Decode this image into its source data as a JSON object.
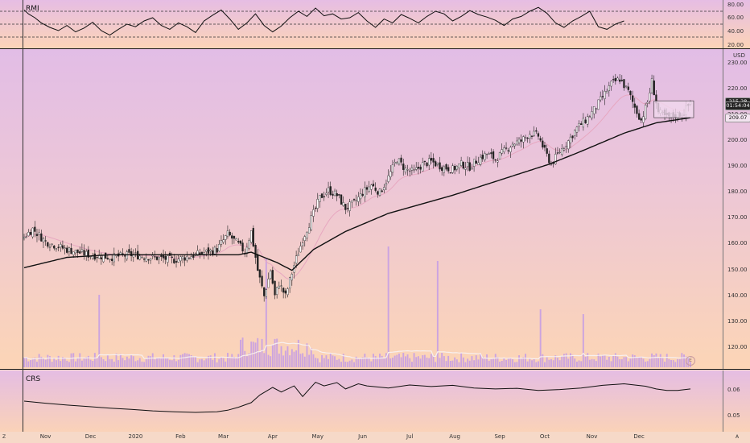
{
  "chart_data": [
    {
      "type": "line",
      "title": "RMI",
      "y_ticks": [
        80,
        60,
        40,
        20
      ],
      "y_tick_labels": [
        "80.00",
        "60.00",
        "40.00",
        "20.00"
      ],
      "dashed_levels": [
        70,
        50,
        30
      ],
      "ylim": [
        15,
        85
      ],
      "series": [
        {
          "x_index": [
            0,
            2,
            5,
            8,
            12,
            16,
            20,
            24,
            28,
            32,
            36,
            40,
            44,
            48,
            52,
            56,
            60,
            64,
            68,
            72,
            76,
            80,
            84,
            88,
            92,
            96,
            100,
            104,
            108,
            112,
            116,
            120,
            124,
            128,
            132,
            136,
            140,
            144,
            148,
            152,
            156,
            160,
            164,
            168,
            172,
            176,
            180,
            184,
            188,
            192,
            196,
            200,
            204,
            208,
            212,
            216,
            220,
            224,
            228,
            232,
            236,
            240,
            244,
            248,
            252,
            256,
            260,
            264,
            268,
            272,
            276,
            280
          ],
          "values": [
            72,
            66,
            60,
            52,
            45,
            40,
            48,
            38,
            44,
            53,
            40,
            33,
            42,
            50,
            46,
            55,
            60,
            48,
            42,
            52,
            46,
            37,
            55,
            64,
            72,
            58,
            42,
            52,
            66,
            48,
            38,
            47,
            60,
            70,
            62,
            75,
            63,
            66,
            58,
            60,
            68,
            55,
            45,
            58,
            52,
            65,
            59,
            52,
            62,
            70,
            66,
            55,
            62,
            71,
            65,
            61,
            56,
            48,
            58,
            62,
            70,
            76,
            67,
            52,
            45,
            55,
            62,
            70,
            46,
            42,
            50,
            55
          ]
        }
      ]
    },
    {
      "type": "candlestick",
      "currency": "USD",
      "y_ticks": [
        230,
        220,
        210,
        200,
        190,
        180,
        170,
        160,
        150,
        140,
        130,
        120
      ],
      "y_tick_labels": [
        "230.00",
        "220.00",
        "210.00",
        "200.00",
        "190.00",
        "180.00",
        "170.00",
        "160.00",
        "150.00",
        "140.00",
        "130.00",
        "120.00"
      ],
      "ylim": [
        115,
        233
      ],
      "last_price": "215.28",
      "countdown_label": "01:54:04",
      "sma_label": "209.07",
      "event_marker": "E",
      "close_anchors": [
        {
          "d": 0,
          "c": 163
        },
        {
          "d": 4,
          "c": 166
        },
        {
          "d": 10,
          "c": 161
        },
        {
          "d": 20,
          "c": 158
        },
        {
          "d": 30,
          "c": 156
        },
        {
          "d": 40,
          "c": 155
        },
        {
          "d": 50,
          "c": 156
        },
        {
          "d": 60,
          "c": 155
        },
        {
          "d": 70,
          "c": 154
        },
        {
          "d": 80,
          "c": 156
        },
        {
          "d": 90,
          "c": 158
        },
        {
          "d": 95,
          "c": 164
        },
        {
          "d": 100,
          "c": 160
        },
        {
          "d": 103,
          "c": 157
        },
        {
          "d": 106,
          "c": 165
        },
        {
          "d": 109,
          "c": 150
        },
        {
          "d": 112,
          "c": 140
        },
        {
          "d": 115,
          "c": 150
        },
        {
          "d": 117,
          "c": 140
        },
        {
          "d": 119,
          "c": 145
        },
        {
          "d": 122,
          "c": 140
        },
        {
          "d": 126,
          "c": 152
        },
        {
          "d": 130,
          "c": 162
        },
        {
          "d": 134,
          "c": 170
        },
        {
          "d": 138,
          "c": 178
        },
        {
          "d": 142,
          "c": 181
        },
        {
          "d": 146,
          "c": 179
        },
        {
          "d": 150,
          "c": 174
        },
        {
          "d": 154,
          "c": 176
        },
        {
          "d": 158,
          "c": 180
        },
        {
          "d": 162,
          "c": 183
        },
        {
          "d": 166,
          "c": 180
        },
        {
          "d": 170,
          "c": 186
        },
        {
          "d": 174,
          "c": 193
        },
        {
          "d": 178,
          "c": 189
        },
        {
          "d": 182,
          "c": 188
        },
        {
          "d": 186,
          "c": 191
        },
        {
          "d": 190,
          "c": 192
        },
        {
          "d": 195,
          "c": 190
        },
        {
          "d": 200,
          "c": 189
        },
        {
          "d": 204,
          "c": 191
        },
        {
          "d": 208,
          "c": 190
        },
        {
          "d": 212,
          "c": 193
        },
        {
          "d": 216,
          "c": 195
        },
        {
          "d": 220,
          "c": 193
        },
        {
          "d": 224,
          "c": 196
        },
        {
          "d": 228,
          "c": 199
        },
        {
          "d": 232,
          "c": 200
        },
        {
          "d": 236,
          "c": 203
        },
        {
          "d": 240,
          "c": 202
        },
        {
          "d": 243,
          "c": 196
        },
        {
          "d": 246,
          "c": 191
        },
        {
          "d": 250,
          "c": 196
        },
        {
          "d": 254,
          "c": 200
        },
        {
          "d": 258,
          "c": 205
        },
        {
          "d": 262,
          "c": 208
        },
        {
          "d": 266,
          "c": 212
        },
        {
          "d": 270,
          "c": 217
        },
        {
          "d": 274,
          "c": 222
        },
        {
          "d": 278,
          "c": 224
        },
        {
          "d": 282,
          "c": 219
        },
        {
          "d": 285,
          "c": 213
        },
        {
          "d": 288,
          "c": 208
        },
        {
          "d": 291,
          "c": 215
        },
        {
          "d": 293,
          "c": 223
        },
        {
          "d": 296,
          "c": 211
        },
        {
          "d": 300,
          "c": 209
        },
        {
          "d": 304,
          "c": 210
        },
        {
          "d": 308,
          "c": 211
        },
        {
          "d": 311,
          "c": 215
        }
      ],
      "sma200_anchors": [
        {
          "d": 0,
          "c": 151
        },
        {
          "d": 20,
          "c": 155
        },
        {
          "d": 40,
          "c": 156
        },
        {
          "d": 60,
          "c": 156
        },
        {
          "d": 80,
          "c": 156
        },
        {
          "d": 100,
          "c": 156
        },
        {
          "d": 106,
          "c": 157
        },
        {
          "d": 112,
          "c": 155
        },
        {
          "d": 118,
          "c": 153
        },
        {
          "d": 125,
          "c": 150
        },
        {
          "d": 135,
          "c": 158
        },
        {
          "d": 150,
          "c": 165
        },
        {
          "d": 170,
          "c": 172
        },
        {
          "d": 200,
          "c": 179
        },
        {
          "d": 230,
          "c": 187
        },
        {
          "d": 245,
          "c": 191
        },
        {
          "d": 260,
          "c": 196
        },
        {
          "d": 280,
          "c": 203
        },
        {
          "d": 295,
          "c": 207
        },
        {
          "d": 311,
          "c": 209
        }
      ],
      "volume_spikes": [
        {
          "d": 35,
          "v": 3.0
        },
        {
          "d": 113,
          "v": 4.5
        },
        {
          "d": 170,
          "v": 5.0
        },
        {
          "d": 193,
          "v": 4.4
        },
        {
          "d": 241,
          "v": 2.4
        },
        {
          "d": 261,
          "v": 2.2
        },
        {
          "d": 113,
          "v": 4.5
        }
      ]
    },
    {
      "type": "line",
      "title": "CRS",
      "y_ticks": [
        0.06,
        0.05
      ],
      "y_tick_labels": [
        "0.06",
        "0.05"
      ],
      "ylim": [
        0.0465,
        0.0645
      ],
      "series": [
        {
          "x_index": [
            0,
            10,
            20,
            30,
            40,
            50,
            60,
            70,
            80,
            90,
            95,
            100,
            106,
            110,
            116,
            120,
            126,
            130,
            136,
            140,
            146,
            150,
            156,
            160,
            170,
            180,
            190,
            200,
            210,
            220,
            230,
            240,
            250,
            260,
            270,
            280,
            285,
            290,
            295,
            300,
            305,
            311
          ],
          "values": [
            0.0555,
            0.0548,
            0.0542,
            0.0537,
            0.0532,
            0.0528,
            0.0523,
            0.052,
            0.0518,
            0.052,
            0.0525,
            0.0535,
            0.055,
            0.0575,
            0.06,
            0.0585,
            0.0605,
            0.057,
            0.0617,
            0.0605,
            0.0616,
            0.0595,
            0.0612,
            0.0605,
            0.0598,
            0.0608,
            0.0603,
            0.0607,
            0.0598,
            0.0595,
            0.0597,
            0.059,
            0.0593,
            0.0598,
            0.0607,
            0.0612,
            0.0608,
            0.0604,
            0.0595,
            0.059,
            0.059,
            0.0595
          ]
        }
      ]
    }
  ],
  "time_axis": {
    "labels": [
      {
        "text": "Nov",
        "d": 10
      },
      {
        "text": "Dec",
        "d": 31
      },
      {
        "text": "2020",
        "d": 52
      },
      {
        "text": "Feb",
        "d": 73
      },
      {
        "text": "Mar",
        "d": 93
      },
      {
        "text": "Apr",
        "d": 116
      },
      {
        "text": "May",
        "d": 137
      },
      {
        "text": "Jun",
        "d": 158
      },
      {
        "text": "Jul",
        "d": 180
      },
      {
        "text": "Aug",
        "d": 201
      },
      {
        "text": "Sep",
        "d": 222
      },
      {
        "text": "Oct",
        "d": 243
      },
      {
        "text": "Nov",
        "d": 265
      },
      {
        "text": "Dec",
        "d": 287
      }
    ]
  },
  "corners": {
    "left": "Z",
    "right": "A"
  },
  "colors": {
    "up": "#ffffff",
    "down": "#222222",
    "sma": "#111111",
    "ema": "#e7a7c0",
    "volume": "#c39be6",
    "volume_ma": "#f7f0f0"
  }
}
